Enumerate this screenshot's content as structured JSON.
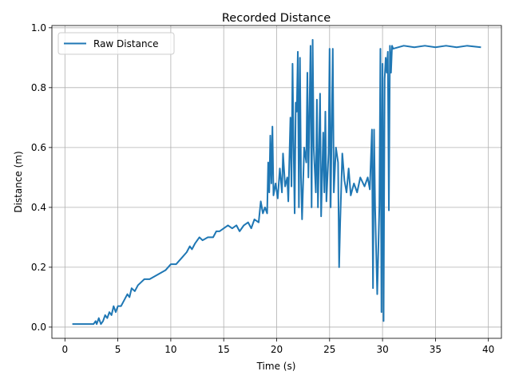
{
  "chart_data": {
    "type": "line",
    "title": "Recorded Distance",
    "xlabel": "Time (s)",
    "ylabel": "Distance (m)",
    "x": [
      0.7,
      2.7,
      2.9,
      3.0,
      3.2,
      3.4,
      3.6,
      3.8,
      4.0,
      4.2,
      4.4,
      4.6,
      4.8,
      5.0,
      5.3,
      5.6,
      5.9,
      6.1,
      6.3,
      6.6,
      6.9,
      7.2,
      7.5,
      8.0,
      8.5,
      9.0,
      9.5,
      10.0,
      10.5,
      11.0,
      11.5,
      11.8,
      12.0,
      12.3,
      12.7,
      13.0,
      13.5,
      14.0,
      14.3,
      14.6,
      15.0,
      15.4,
      15.8,
      16.2,
      16.5,
      16.9,
      17.3,
      17.6,
      17.9,
      18.3,
      18.5,
      18.7,
      18.9,
      19.1,
      19.2,
      19.3,
      19.4,
      19.5,
      19.6,
      19.7,
      19.9,
      20.1,
      20.3,
      20.5,
      20.6,
      20.8,
      21.0,
      21.1,
      21.3,
      21.4,
      21.5,
      21.6,
      21.7,
      21.8,
      21.9,
      22.0,
      22.1,
      22.2,
      22.3,
      22.4,
      22.6,
      22.8,
      22.9,
      23.0,
      23.2,
      23.3,
      23.4,
      23.5,
      23.7,
      23.8,
      23.9,
      24.1,
      24.2,
      24.4,
      24.5,
      24.6,
      24.7,
      24.9,
      25.0,
      25.1,
      25.3,
      25.4,
      25.6,
      25.8,
      25.9,
      26.0,
      26.2,
      26.4,
      26.6,
      26.8,
      27.0,
      27.3,
      27.6,
      27.9,
      28.3,
      28.6,
      28.8,
      29.0,
      29.1,
      29.2,
      29.3,
      29.5,
      29.7,
      29.8,
      29.9,
      30.0,
      30.1,
      30.2,
      30.3,
      30.4,
      30.5,
      30.6,
      30.7,
      30.8,
      30.9,
      31.0,
      32,
      33,
      34,
      35,
      36,
      37,
      38,
      39.3
    ],
    "series": [
      {
        "name": "Raw Distance",
        "color": "#1f77b4",
        "values": [
          0.01,
          0.01,
          0.02,
          0.01,
          0.03,
          0.01,
          0.02,
          0.04,
          0.03,
          0.05,
          0.04,
          0.07,
          0.05,
          0.07,
          0.07,
          0.09,
          0.11,
          0.1,
          0.13,
          0.12,
          0.14,
          0.15,
          0.16,
          0.16,
          0.17,
          0.18,
          0.19,
          0.21,
          0.21,
          0.23,
          0.25,
          0.27,
          0.26,
          0.28,
          0.3,
          0.29,
          0.3,
          0.3,
          0.32,
          0.32,
          0.33,
          0.34,
          0.33,
          0.34,
          0.32,
          0.34,
          0.35,
          0.33,
          0.36,
          0.35,
          0.42,
          0.38,
          0.4,
          0.38,
          0.55,
          0.45,
          0.64,
          0.48,
          0.67,
          0.44,
          0.48,
          0.43,
          0.53,
          0.45,
          0.58,
          0.47,
          0.5,
          0.42,
          0.7,
          0.47,
          0.88,
          0.6,
          0.38,
          0.75,
          0.72,
          0.92,
          0.4,
          0.9,
          0.5,
          0.36,
          0.6,
          0.55,
          0.85,
          0.5,
          0.94,
          0.4,
          0.96,
          0.6,
          0.45,
          0.76,
          0.4,
          0.78,
          0.37,
          0.65,
          0.45,
          0.72,
          0.42,
          0.58,
          0.93,
          0.4,
          0.93,
          0.45,
          0.6,
          0.55,
          0.2,
          0.35,
          0.58,
          0.49,
          0.45,
          0.53,
          0.44,
          0.48,
          0.45,
          0.5,
          0.47,
          0.5,
          0.46,
          0.66,
          0.13,
          0.66,
          0.4,
          0.11,
          0.4,
          0.93,
          0.05,
          0.88,
          0.02,
          0.83,
          0.9,
          0.85,
          0.92,
          0.39,
          0.94,
          0.85,
          0.94,
          0.93,
          0.94,
          0.935,
          0.94,
          0.935,
          0.94,
          0.935,
          0.94,
          0.935
        ]
      }
    ],
    "xlim": [
      -1.23,
      41.23
    ],
    "ylim": [
      -0.0375,
      1.0075
    ],
    "xticks": [
      0,
      5,
      10,
      15,
      20,
      25,
      30,
      35,
      40
    ],
    "yticks": [
      {
        "value": 0,
        "label": "0.0"
      },
      0.2,
      0.4,
      0.6,
      0.8,
      {
        "value": 1,
        "label": "1.0"
      }
    ],
    "grid": true,
    "legend": "upper left"
  }
}
